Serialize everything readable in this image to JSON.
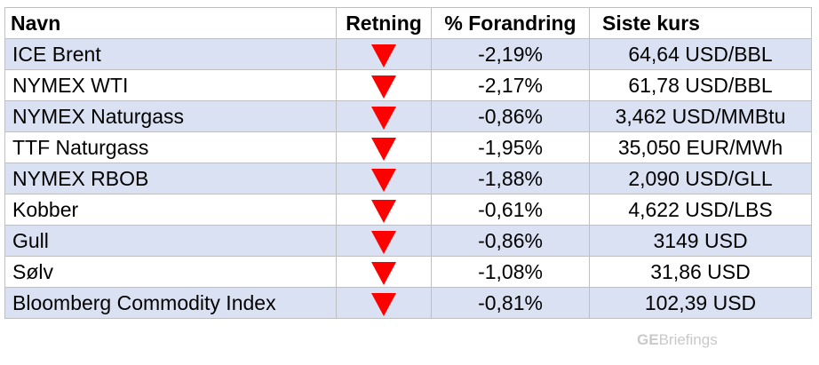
{
  "table": {
    "headers": {
      "name": "Navn",
      "direction": "Retning",
      "change": "% Forandring",
      "price": "Siste kurs"
    },
    "rows": [
      {
        "name": "ICE Brent",
        "direction": "down",
        "change": "-2,19%",
        "price": "64,64 USD/BBL"
      },
      {
        "name": "NYMEX WTI",
        "direction": "down",
        "change": "-2,17%",
        "price": "61,78 USD/BBL"
      },
      {
        "name": "NYMEX Naturgass",
        "direction": "down",
        "change": "-0,86%",
        "price": "3,462 USD/MMBtu"
      },
      {
        "name": "TTF Naturgass",
        "direction": "down",
        "change": "-1,95%",
        "price": "35,050 EUR/MWh"
      },
      {
        "name": "NYMEX RBOB",
        "direction": "down",
        "change": "-1,88%",
        "price": "2,090 USD/GLL"
      },
      {
        "name": "Kobber",
        "direction": "down",
        "change": "-0,61%",
        "price": "4,622 USD/LBS"
      },
      {
        "name": "Gull",
        "direction": "down",
        "change": "-0,86%",
        "price": "3149 USD"
      },
      {
        "name": "Sølv",
        "direction": "down",
        "change": "-1,08%",
        "price": "31,86 USD"
      },
      {
        "name": "Bloomberg Commodity Index",
        "direction": "down",
        "change": "-0,81%",
        "price": "102,39 USD"
      }
    ]
  },
  "watermark": {
    "prefix": "GE",
    "suffix": "Briefings"
  },
  "colors": {
    "row_shade": "#d9e1f2",
    "down_arrow": "#ff0000",
    "border": "#bfbfbf",
    "watermark": "#c9c9c9"
  },
  "icons": {
    "direction_down": "down-triangle-icon"
  }
}
